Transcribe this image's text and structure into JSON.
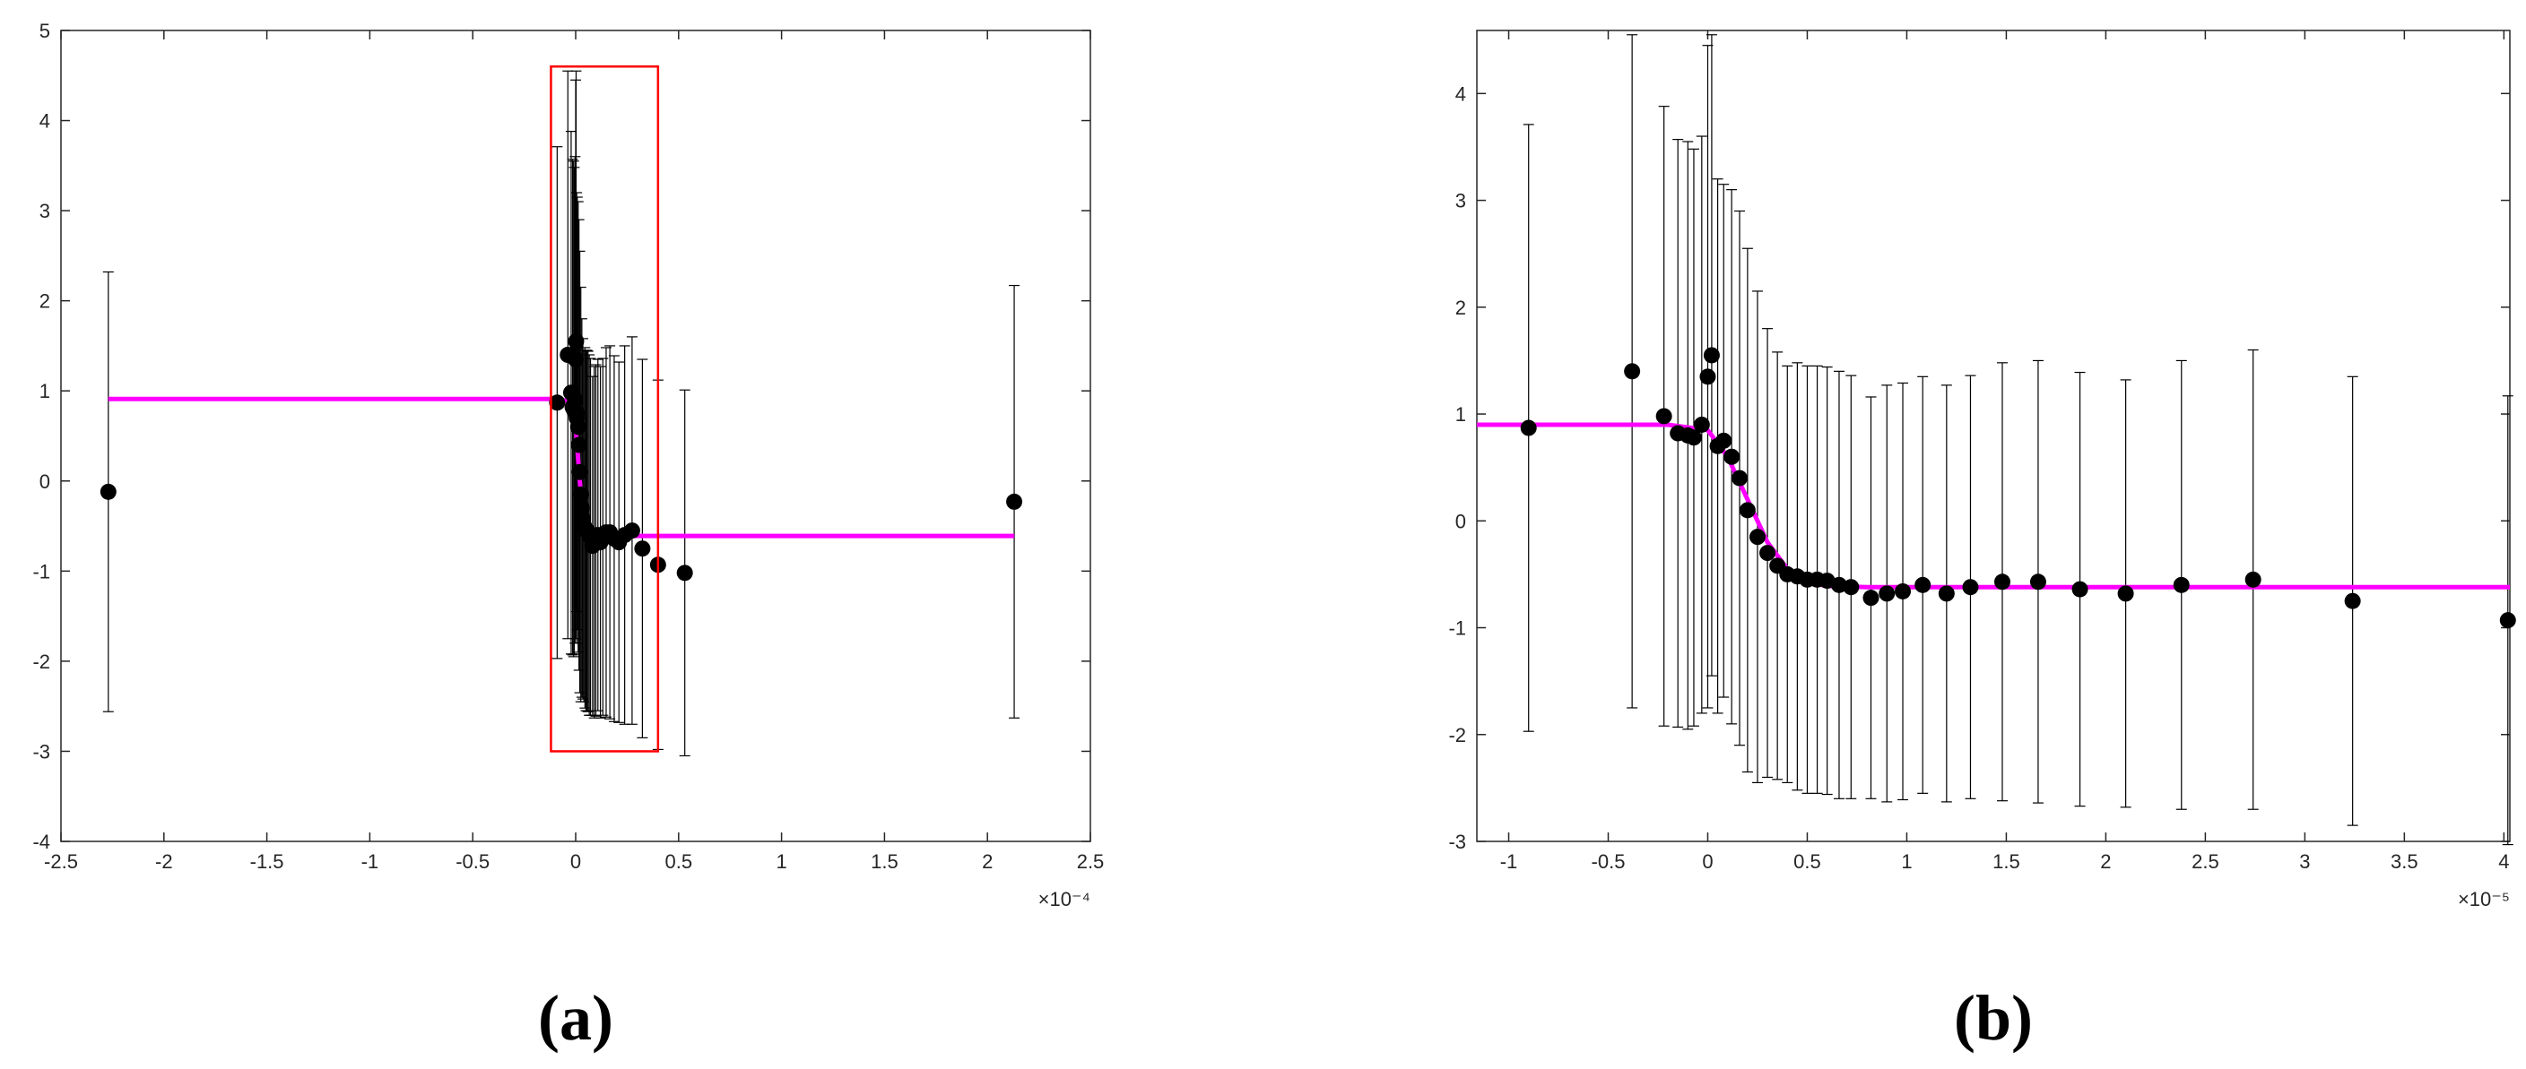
{
  "chart_data": [
    {
      "type": "scatter",
      "panel_label": "(a)",
      "x_scale_label": "×10⁻⁴",
      "xlim": [
        -2.5,
        2.5
      ],
      "ylim": [
        -4,
        5
      ],
      "xticks": [
        -2.5,
        -2,
        -1.5,
        -1,
        -0.5,
        0,
        0.5,
        1,
        1.5,
        2,
        2.5
      ],
      "yticks": [
        -4,
        -3,
        -2,
        -1,
        0,
        1,
        2,
        3,
        4,
        5
      ],
      "highlight_box": {
        "x": [
          -0.12,
          0.4
        ],
        "y": [
          -3,
          4.6
        ],
        "color": "#ff0000"
      },
      "points": {
        "color": "#000000",
        "x": [
          -2.27,
          -0.09,
          -0.038,
          -0.022,
          -0.015,
          -0.01,
          -0.007,
          -0.003,
          0.0,
          0.002,
          0.005,
          0.008,
          0.012,
          0.016,
          0.02,
          0.025,
          0.03,
          0.035,
          0.04,
          0.045,
          0.05,
          0.055,
          0.06,
          0.066,
          0.072,
          0.082,
          0.09,
          0.098,
          0.108,
          0.12,
          0.132,
          0.148,
          0.166,
          0.187,
          0.21,
          0.238,
          0.274,
          0.324,
          0.4,
          0.53,
          2.13
        ],
        "values": [
          -0.12,
          0.87,
          1.4,
          0.98,
          0.82,
          0.8,
          0.78,
          0.9,
          1.35,
          1.55,
          0.7,
          0.75,
          0.6,
          0.4,
          0.1,
          -0.15,
          -0.3,
          -0.42,
          -0.5,
          -0.52,
          -0.55,
          -0.55,
          -0.56,
          -0.6,
          -0.62,
          -0.72,
          -0.68,
          -0.66,
          -0.6,
          -0.68,
          -0.62,
          -0.57,
          -0.57,
          -0.64,
          -0.68,
          -0.6,
          -0.55,
          -0.75,
          -0.93,
          -1.02,
          -0.23
        ],
        "errors": [
          2.44,
          2.84,
          3.15,
          2.9,
          2.75,
          2.75,
          2.7,
          2.7,
          3.1,
          3.0,
          2.5,
          2.4,
          2.5,
          2.5,
          2.45,
          2.3,
          2.1,
          2.0,
          1.95,
          2.0,
          2.0,
          2.0,
          2.0,
          2.0,
          1.98,
          1.88,
          1.95,
          1.95,
          1.95,
          1.95,
          1.98,
          2.05,
          2.07,
          2.03,
          2.0,
          2.1,
          2.15,
          2.1,
          2.05,
          2.03,
          2.4
        ]
      },
      "fit": {
        "color": "#ff00ff",
        "x": [
          -2.27,
          -0.1,
          -0.02,
          0.0,
          0.02,
          0.04,
          0.06,
          2.13
        ],
        "values": [
          0.91,
          0.91,
          0.88,
          0.6,
          0.0,
          -0.5,
          -0.61,
          -0.61
        ]
      }
    },
    {
      "type": "scatter",
      "panel_label": "(b)",
      "x_scale_label": "×10⁻⁵",
      "xlim": [
        -1.16,
        4.03
      ],
      "ylim": [
        -3,
        4.59
      ],
      "xticks": [
        -1,
        -0.5,
        0,
        0.5,
        1,
        1.5,
        2,
        2.5,
        3,
        3.5,
        4
      ],
      "yticks": [
        -3,
        -2,
        -1,
        0,
        1,
        2,
        3,
        4
      ],
      "points": {
        "color": "#000000",
        "x": [
          -0.9,
          -0.38,
          -0.22,
          -0.15,
          -0.1,
          -0.07,
          -0.03,
          0.0,
          0.02,
          0.05,
          0.08,
          0.12,
          0.16,
          0.2,
          0.25,
          0.3,
          0.35,
          0.4,
          0.45,
          0.5,
          0.55,
          0.6,
          0.66,
          0.72,
          0.82,
          0.9,
          0.98,
          1.08,
          1.2,
          1.32,
          1.48,
          1.66,
          1.87,
          2.1,
          2.38,
          2.74,
          3.24,
          4.02
        ],
        "values": [
          0.87,
          1.4,
          0.98,
          0.82,
          0.8,
          0.78,
          0.9,
          1.35,
          1.55,
          0.7,
          0.75,
          0.6,
          0.4,
          0.1,
          -0.15,
          -0.3,
          -0.42,
          -0.5,
          -0.52,
          -0.55,
          -0.55,
          -0.56,
          -0.6,
          -0.62,
          -0.72,
          -0.68,
          -0.66,
          -0.6,
          -0.68,
          -0.62,
          -0.57,
          -0.57,
          -0.64,
          -0.68,
          -0.6,
          -0.55,
          -0.75,
          -0.93
        ],
        "errors": [
          2.84,
          3.15,
          2.9,
          2.75,
          2.75,
          2.7,
          2.7,
          3.1,
          3.0,
          2.5,
          2.4,
          2.5,
          2.5,
          2.45,
          2.3,
          2.1,
          2.0,
          1.95,
          2.0,
          2.0,
          2.0,
          2.0,
          2.0,
          1.98,
          1.88,
          1.95,
          1.95,
          1.95,
          1.95,
          1.98,
          2.05,
          2.07,
          2.03,
          2.0,
          2.1,
          2.15,
          2.1,
          2.1
        ]
      },
      "fit": {
        "color": "#ff00ff",
        "x": [
          -1.16,
          -0.2,
          0.0,
          0.1,
          0.2,
          0.3,
          0.4,
          0.5,
          0.6,
          0.8,
          4.03
        ],
        "values": [
          0.9,
          0.9,
          0.85,
          0.6,
          0.2,
          -0.2,
          -0.45,
          -0.57,
          -0.61,
          -0.62,
          -0.62
        ]
      }
    }
  ]
}
